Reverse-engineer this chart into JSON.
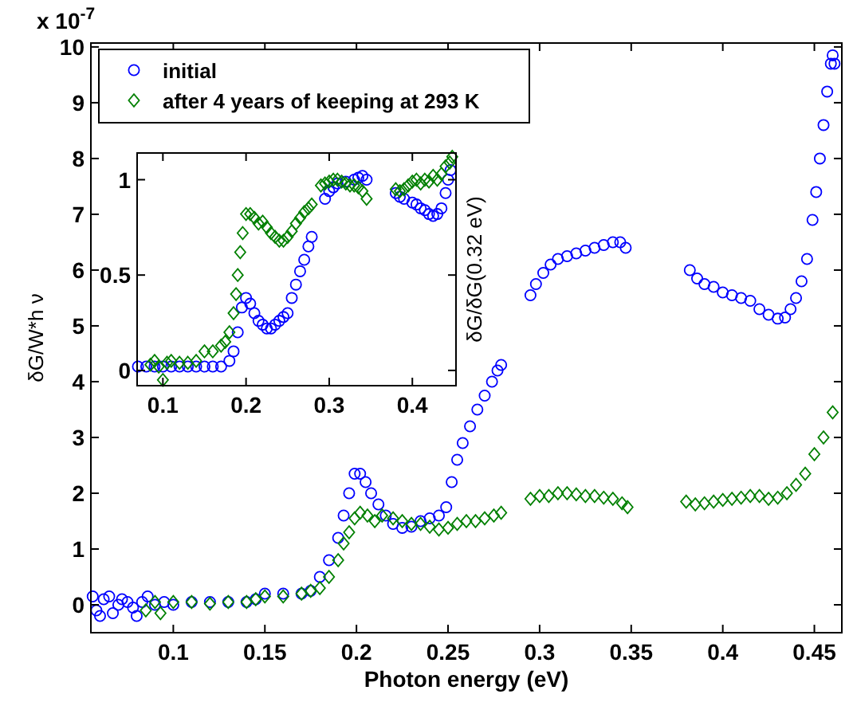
{
  "chart_data": [
    {
      "type": "scatter",
      "xlabel": "Photon energy (eV)",
      "ylabel": "δG/W*h ν",
      "annotations": [
        "x 10$^{-7}$"
      ],
      "xlim": [
        0.055,
        0.465
      ],
      "ylim": [
        -0.5,
        10.07
      ],
      "xticks": [
        0.1,
        0.15,
        0.2,
        0.25,
        0.3,
        0.35,
        0.4,
        0.45
      ],
      "yticks": [
        0,
        1,
        2,
        3,
        4,
        5,
        6,
        7,
        8,
        9,
        10
      ],
      "grid": false,
      "legend": "top left",
      "series": [
        {
          "name": "initial",
          "color": "#0000ff",
          "marker": "circle",
          "x": [
            0.056,
            0.058,
            0.06,
            0.062,
            0.065,
            0.067,
            0.07,
            0.072,
            0.075,
            0.078,
            0.08,
            0.083,
            0.086,
            0.09,
            0.095,
            0.1,
            0.11,
            0.12,
            0.13,
            0.14,
            0.145,
            0.15,
            0.16,
            0.17,
            0.175,
            0.18,
            0.185,
            0.19,
            0.193,
            0.196,
            0.199,
            0.202,
            0.205,
            0.208,
            0.212,
            0.216,
            0.22,
            0.225,
            0.23,
            0.235,
            0.24,
            0.245,
            0.249,
            0.252,
            0.255,
            0.258,
            0.262,
            0.266,
            0.27,
            0.274,
            0.277,
            0.279,
            0.295,
            0.298,
            0.302,
            0.306,
            0.31,
            0.315,
            0.32,
            0.325,
            0.33,
            0.335,
            0.34,
            0.344,
            0.347,
            0.382,
            0.386,
            0.39,
            0.395,
            0.4,
            0.405,
            0.41,
            0.415,
            0.42,
            0.425,
            0.43,
            0.434,
            0.437,
            0.44,
            0.443,
            0.446,
            0.449,
            0.451,
            0.453,
            0.455,
            0.457,
            0.459,
            0.46,
            0.461
          ],
          "values": [
            0.15,
            -0.1,
            -0.2,
            0.1,
            0.15,
            -0.15,
            0.0,
            0.1,
            0.05,
            -0.05,
            -0.2,
            0.05,
            0.15,
            0.0,
            0.05,
            0.0,
            0.05,
            0.05,
            0.05,
            0.05,
            0.1,
            0.2,
            0.2,
            0.2,
            0.25,
            0.5,
            0.8,
            1.2,
            1.6,
            2.0,
            2.35,
            2.35,
            2.2,
            2.0,
            1.8,
            1.6,
            1.45,
            1.38,
            1.4,
            1.5,
            1.55,
            1.6,
            1.75,
            2.2,
            2.6,
            2.9,
            3.2,
            3.5,
            3.75,
            4.0,
            4.2,
            4.3,
            5.55,
            5.75,
            5.95,
            6.1,
            6.2,
            6.25,
            6.3,
            6.35,
            6.4,
            6.45,
            6.5,
            6.5,
            6.4,
            6.0,
            5.85,
            5.75,
            5.7,
            5.6,
            5.55,
            5.5,
            5.45,
            5.3,
            5.2,
            5.13,
            5.15,
            5.3,
            5.5,
            5.8,
            6.2,
            6.9,
            7.4,
            8.0,
            8.6,
            9.2,
            9.7,
            9.85,
            9.7
          ]
        },
        {
          "name": "after 4 years of keeping at 293 K",
          "color": "#008000",
          "marker": "diamond",
          "x": [
            0.085,
            0.09,
            0.093,
            0.1,
            0.11,
            0.12,
            0.13,
            0.14,
            0.145,
            0.15,
            0.16,
            0.17,
            0.175,
            0.18,
            0.185,
            0.19,
            0.193,
            0.196,
            0.199,
            0.202,
            0.206,
            0.21,
            0.214,
            0.22,
            0.225,
            0.23,
            0.235,
            0.24,
            0.245,
            0.25,
            0.255,
            0.26,
            0.265,
            0.27,
            0.275,
            0.279,
            0.295,
            0.3,
            0.305,
            0.31,
            0.315,
            0.32,
            0.325,
            0.33,
            0.335,
            0.34,
            0.345,
            0.348,
            0.38,
            0.385,
            0.39,
            0.395,
            0.4,
            0.405,
            0.41,
            0.415,
            0.42,
            0.425,
            0.43,
            0.435,
            0.44,
            0.445,
            0.45,
            0.455,
            0.46
          ],
          "values": [
            -0.1,
            0.05,
            -0.15,
            0.05,
            0.05,
            0.02,
            0.05,
            0.05,
            0.1,
            0.15,
            0.15,
            0.2,
            0.25,
            0.3,
            0.5,
            0.8,
            1.1,
            1.3,
            1.55,
            1.65,
            1.6,
            1.5,
            1.6,
            1.55,
            1.5,
            1.45,
            1.45,
            1.4,
            1.35,
            1.38,
            1.45,
            1.5,
            1.5,
            1.55,
            1.6,
            1.65,
            1.9,
            1.95,
            1.95,
            2.0,
            2.0,
            1.98,
            1.95,
            1.95,
            1.92,
            1.9,
            1.82,
            1.75,
            1.85,
            1.8,
            1.82,
            1.85,
            1.88,
            1.9,
            1.92,
            1.95,
            1.95,
            1.9,
            1.92,
            2.0,
            2.15,
            2.35,
            2.7,
            3.0,
            3.45
          ]
        }
      ]
    },
    {
      "type": "scatter",
      "ylabel": "δG/δG(0.32 eV)",
      "xlim": [
        0.069,
        0.4525
      ],
      "ylim": [
        -0.08,
        1.14
      ],
      "xticks": [
        0.1,
        0.2,
        0.3,
        0.4
      ],
      "yticks": [
        0,
        0.5,
        1
      ],
      "grid": false,
      "legend": false,
      "series": [
        {
          "color": "#0000ff",
          "marker": "circle",
          "x": [
            0.07,
            0.08,
            0.09,
            0.1,
            0.11,
            0.12,
            0.13,
            0.14,
            0.15,
            0.16,
            0.17,
            0.18,
            0.185,
            0.19,
            0.195,
            0.2,
            0.205,
            0.21,
            0.215,
            0.22,
            0.225,
            0.23,
            0.235,
            0.24,
            0.245,
            0.25,
            0.255,
            0.26,
            0.265,
            0.27,
            0.275,
            0.279,
            0.295,
            0.3,
            0.305,
            0.31,
            0.32,
            0.33,
            0.335,
            0.34,
            0.345,
            0.38,
            0.385,
            0.39,
            0.4,
            0.405,
            0.41,
            0.415,
            0.42,
            0.425,
            0.43,
            0.435,
            0.44,
            0.443,
            0.446
          ],
          "values": [
            0.02,
            0.02,
            0.02,
            0.02,
            0.02,
            0.02,
            0.02,
            0.02,
            0.02,
            0.02,
            0.02,
            0.05,
            0.1,
            0.2,
            0.33,
            0.38,
            0.35,
            0.3,
            0.26,
            0.24,
            0.22,
            0.22,
            0.24,
            0.26,
            0.28,
            0.3,
            0.38,
            0.45,
            0.52,
            0.58,
            0.65,
            0.7,
            0.9,
            0.94,
            0.96,
            0.98,
            0.99,
            1.0,
            1.01,
            1.02,
            1.0,
            0.93,
            0.91,
            0.9,
            0.88,
            0.87,
            0.85,
            0.84,
            0.82,
            0.81,
            0.82,
            0.85,
            0.93,
            1.0,
            1.05
          ]
        },
        {
          "color": "#008000",
          "marker": "diamond",
          "x": [
            0.085,
            0.09,
            0.095,
            0.1,
            0.105,
            0.11,
            0.12,
            0.13,
            0.14,
            0.15,
            0.16,
            0.17,
            0.175,
            0.18,
            0.185,
            0.188,
            0.19,
            0.193,
            0.196,
            0.2,
            0.205,
            0.21,
            0.215,
            0.22,
            0.225,
            0.23,
            0.235,
            0.24,
            0.245,
            0.25,
            0.255,
            0.26,
            0.265,
            0.27,
            0.275,
            0.279,
            0.29,
            0.295,
            0.3,
            0.305,
            0.31,
            0.315,
            0.32,
            0.325,
            0.33,
            0.335,
            0.34,
            0.345,
            0.38,
            0.385,
            0.39,
            0.395,
            0.4,
            0.405,
            0.41,
            0.415,
            0.42,
            0.425,
            0.43,
            0.435,
            0.44,
            0.445,
            0.448
          ],
          "values": [
            0.03,
            0.05,
            0.02,
            -0.05,
            0.04,
            0.05,
            0.04,
            0.04,
            0.05,
            0.1,
            0.1,
            0.13,
            0.15,
            0.2,
            0.3,
            0.4,
            0.5,
            0.62,
            0.72,
            0.82,
            0.82,
            0.8,
            0.77,
            0.78,
            0.75,
            0.72,
            0.7,
            0.68,
            0.68,
            0.7,
            0.73,
            0.77,
            0.8,
            0.83,
            0.85,
            0.87,
            0.97,
            0.98,
            0.99,
            1.0,
            1.0,
            0.99,
            0.98,
            0.97,
            0.97,
            0.96,
            0.94,
            0.9,
            0.95,
            0.94,
            0.95,
            0.97,
            0.99,
            1.0,
            0.98,
            1.0,
            0.99,
            1.02,
            1.0,
            1.03,
            1.07,
            1.09,
            1.12
          ]
        }
      ]
    }
  ]
}
